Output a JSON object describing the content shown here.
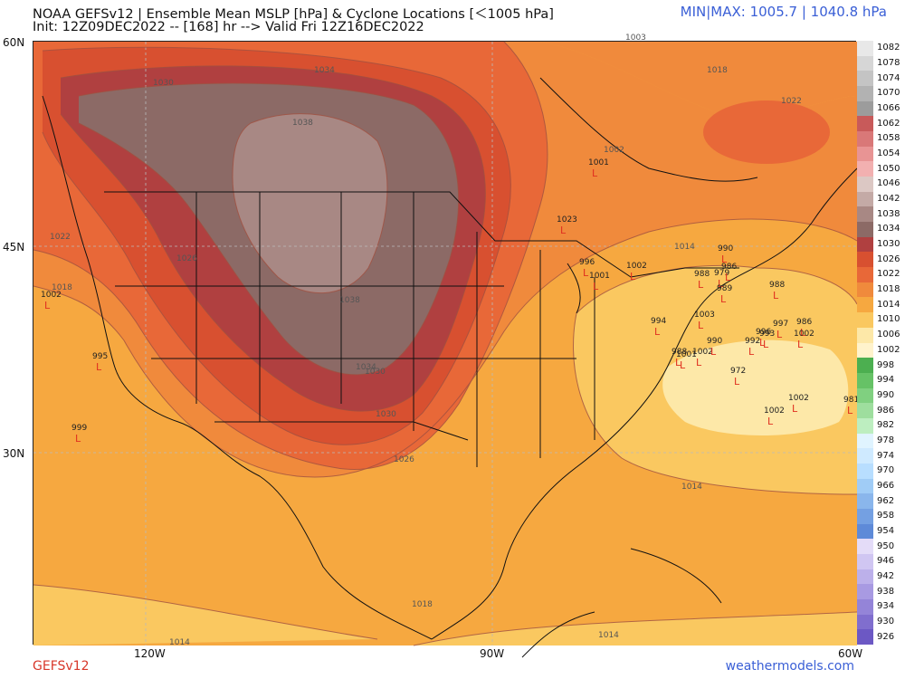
{
  "header": {
    "title_line1": "NOAA GEFSv12 | Ensemble Mean MSLP [hPa] & Cyclone Locations [＜1005 hPa]",
    "title_line2": "Init: 12Z09DEC2022 -- [168] hr --> Valid Fri 12Z16DEC2022",
    "minmax": "MIN|MAX: 1005.7 | 1040.8 hPa"
  },
  "footer": {
    "model": "GEFSv12",
    "site": "weathermodels.com"
  },
  "axes": {
    "lat_ticks": [
      "60N",
      "45N",
      "30N"
    ],
    "lon_ticks": [
      "120W",
      "90W",
      "60W"
    ]
  },
  "colorbar": {
    "labels": [
      "1082",
      "1078",
      "1074",
      "1070",
      "1066",
      "1062",
      "1058",
      "1054",
      "1050",
      "1046",
      "1042",
      "1038",
      "1034",
      "1030",
      "1026",
      "1022",
      "1018",
      "1014",
      "1010",
      "1006",
      "1002",
      "998",
      "994",
      "990",
      "986",
      "982",
      "978",
      "974",
      "970",
      "966",
      "962",
      "958",
      "954",
      "950",
      "946",
      "942",
      "938",
      "934",
      "930",
      "926"
    ],
    "colors": [
      "#e8e8e8",
      "#d6d6d6",
      "#c4c4c4",
      "#b2b2b2",
      "#9c9c9c",
      "#c85a5a",
      "#d97878",
      "#e89494",
      "#f2b0b0",
      "#dcc8c4",
      "#c4aaa6",
      "#a88884",
      "#8c6a66",
      "#b04040",
      "#d85030",
      "#e86838",
      "#f08a3c",
      "#f6a840",
      "#fac860",
      "#fde8a8",
      "#fff3cc",
      "#4caf50",
      "#66c266",
      "#80d080",
      "#9ede9e",
      "#bdeec0",
      "#e0f4ff",
      "#cfeaff",
      "#b8deff",
      "#a0ccf6",
      "#8ab6ec",
      "#74a0e2",
      "#5e8ad8",
      "#e4dcf8",
      "#d0c6f2",
      "#bcb0ea",
      "#a89ae2",
      "#9484d8",
      "#806ece",
      "#6c58c4"
    ]
  },
  "isobar_labels": [
    "1034",
    "1030",
    "1038",
    "1038",
    "1022",
    "1026",
    "1018",
    "1030",
    "1034",
    "1030",
    "1026",
    "1018",
    "1014",
    "1014",
    "1003",
    "1018",
    "1022",
    "1002",
    "1014",
    "1014"
  ],
  "cyclones": [
    {
      "label": "1002"
    },
    {
      "label": "995"
    },
    {
      "label": "999"
    },
    {
      "label": "1001"
    },
    {
      "label": "1023"
    },
    {
      "label": "996"
    },
    {
      "label": "1001"
    },
    {
      "label": "1002"
    },
    {
      "label": "990"
    },
    {
      "label": "988"
    },
    {
      "label": "979"
    },
    {
      "label": "986"
    },
    {
      "label": "989"
    },
    {
      "label": "988"
    },
    {
      "label": "1003"
    },
    {
      "label": "994"
    },
    {
      "label": "988"
    },
    {
      "label": "1001"
    },
    {
      "label": "1002"
    },
    {
      "label": "990"
    },
    {
      "label": "972"
    },
    {
      "label": "992"
    },
    {
      "label": "996"
    },
    {
      "label": "993"
    },
    {
      "label": "997"
    },
    {
      "label": "986"
    },
    {
      "label": "1002"
    },
    {
      "label": "1002"
    },
    {
      "label": "1002"
    },
    {
      "label": "981"
    }
  ],
  "low_symbol": "L"
}
